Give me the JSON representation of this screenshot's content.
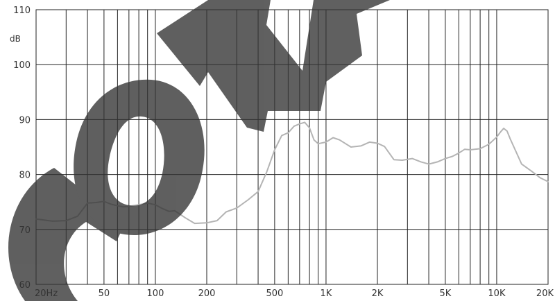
{
  "chart_data": {
    "type": "line",
    "title": "",
    "xlabel": "",
    "ylabel": "dB",
    "x_scale": "log",
    "xlim": [
      20,
      20000
    ],
    "ylim": [
      60,
      110
    ],
    "grid": true,
    "y_ticks": [
      60,
      70,
      80,
      90,
      100,
      110
    ],
    "y_tick_labels": [
      "60",
      "70",
      "80",
      "90",
      "100",
      "110"
    ],
    "x_ticks": [
      20,
      50,
      100,
      200,
      500,
      1000,
      2000,
      5000,
      10000,
      20000
    ],
    "x_tick_labels": [
      "20Hz",
      "50",
      "100",
      "200",
      "500",
      "1K",
      "2K",
      "5K",
      "10K",
      "20K"
    ],
    "x_minor_gridlines": [
      30,
      40,
      60,
      70,
      80,
      90,
      300,
      400,
      600,
      700,
      800,
      900,
      3000,
      4000,
      6000,
      7000,
      8000,
      9000
    ],
    "series": [
      {
        "color": "#b4b4b4",
        "x": [
          20,
          25,
          30,
          35,
          40,
          45,
          50,
          55,
          60,
          65,
          70,
          80,
          90,
          100,
          110,
          120,
          130,
          150,
          170,
          200,
          230,
          260,
          300,
          350,
          400,
          450,
          500,
          550,
          600,
          650,
          700,
          750,
          800,
          850,
          900,
          1000,
          1100,
          1200,
          1400,
          1600,
          1800,
          2000,
          2200,
          2500,
          2800,
          3200,
          3600,
          4000,
          4500,
          5000,
          5500,
          6000,
          6500,
          7000,
          8000,
          9000,
          10000,
          10500,
          11000,
          11500,
          12000,
          13000,
          14000,
          16000,
          18000,
          20000
        ],
        "y": [
          71.9,
          71.5,
          71.6,
          72.4,
          74.8,
          74.9,
          75.1,
          74.6,
          74.3,
          74.1,
          74.2,
          74.5,
          74.8,
          74.5,
          73.8,
          73.3,
          73.4,
          72.1,
          71.1,
          71.2,
          71.6,
          73.2,
          73.9,
          75.4,
          76.9,
          80.5,
          84.5,
          87.1,
          87.6,
          88.8,
          89.2,
          89.5,
          88.5,
          86.3,
          85.6,
          85.9,
          86.7,
          86.3,
          85.0,
          85.2,
          85.9,
          85.7,
          85.1,
          82.7,
          82.6,
          82.9,
          82.3,
          81.9,
          82.3,
          82.9,
          83.3,
          83.9,
          84.6,
          84.5,
          84.7,
          85.5,
          86.8,
          87.7,
          88.4,
          87.9,
          86.5,
          84.1,
          81.9,
          80.6,
          79.4,
          78.7
        ]
      }
    ],
    "watermark": "CONF"
  }
}
